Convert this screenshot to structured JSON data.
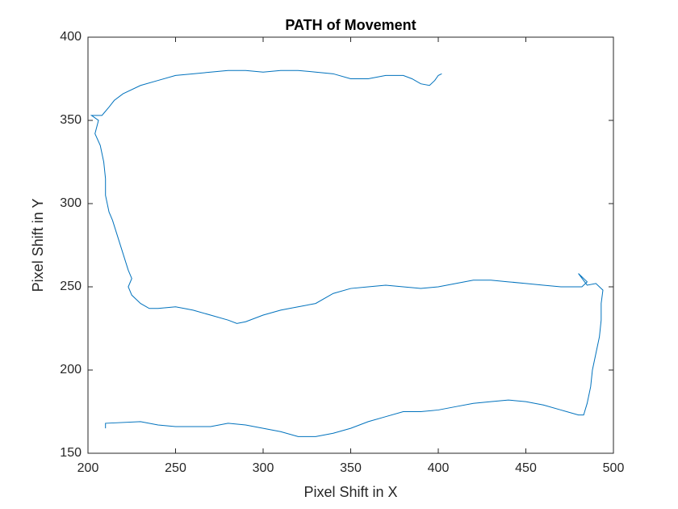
{
  "chart_data": {
    "type": "line",
    "title": "PATH of Movement",
    "x_label": "Pixel Shift in X",
    "y_label": "Pixel Shift in Y",
    "color": "#0072bd",
    "grid": false,
    "xlim": [
      200,
      500
    ],
    "ylim": [
      150,
      400
    ],
    "xticks": [
      200,
      250,
      300,
      350,
      400,
      450,
      500
    ],
    "yticks": [
      150,
      200,
      250,
      300,
      350,
      400
    ],
    "x": [
      210,
      210,
      230,
      240,
      250,
      270,
      280,
      290,
      300,
      310,
      320,
      330,
      340,
      350,
      360,
      370,
      380,
      390,
      400,
      410,
      420,
      430,
      440,
      450,
      460,
      470,
      480,
      483,
      485,
      487,
      488,
      490,
      492,
      493,
      493,
      494,
      490,
      485,
      480,
      485,
      482,
      470,
      460,
      450,
      440,
      430,
      420,
      410,
      400,
      390,
      380,
      370,
      360,
      350,
      340,
      330,
      320,
      310,
      300,
      290,
      285,
      280,
      270,
      260,
      250,
      240,
      235,
      230,
      225,
      223,
      225,
      223,
      220,
      217,
      214,
      212,
      210,
      210,
      209,
      207,
      204,
      206,
      202,
      208,
      212,
      215,
      220,
      230,
      240,
      250,
      260,
      270,
      280,
      290,
      300,
      310,
      320,
      330,
      340,
      350,
      360,
      370,
      380,
      385,
      390,
      395,
      398,
      400,
      402
    ],
    "values": [
      165,
      168,
      169,
      167,
      166,
      166,
      168,
      167,
      165,
      163,
      160,
      160,
      162,
      165,
      169,
      172,
      175,
      175,
      176,
      178,
      180,
      181,
      182,
      181,
      179,
      176,
      173,
      173,
      180,
      190,
      200,
      210,
      220,
      230,
      240,
      248,
      252,
      251,
      258,
      253,
      250,
      250,
      251,
      252,
      253,
      254,
      254,
      252,
      250,
      249,
      250,
      251,
      250,
      249,
      246,
      240,
      238,
      236,
      233,
      229,
      228,
      230,
      233,
      236,
      238,
      237,
      237,
      240,
      245,
      250,
      255,
      260,
      270,
      280,
      290,
      295,
      305,
      315,
      325,
      335,
      342,
      350,
      353,
      353,
      358,
      362,
      366,
      371,
      374,
      377,
      378,
      379,
      380,
      380,
      379,
      380,
      380,
      379,
      378,
      375,
      375,
      377,
      377,
      375,
      372,
      371,
      374,
      377,
      378
    ]
  }
}
